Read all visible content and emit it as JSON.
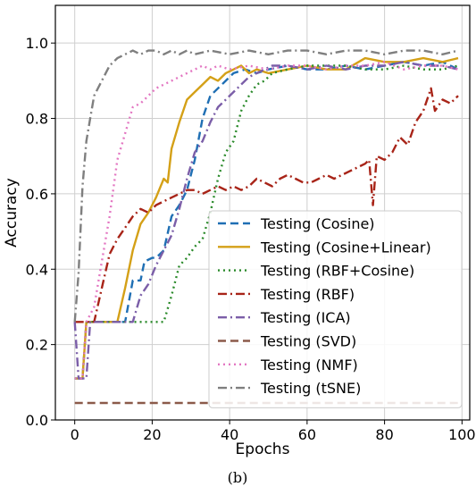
{
  "caption": "(b)",
  "chart_data": {
    "type": "line",
    "title": "",
    "xlabel": "Epochs",
    "ylabel": "Accuracy",
    "xlim": [
      -5,
      102
    ],
    "ylim": [
      0,
      1.1
    ],
    "xticks": [
      0,
      20,
      40,
      60,
      80,
      100
    ],
    "yticks": [
      0.0,
      0.2,
      0.4,
      0.6,
      0.8,
      1.0
    ],
    "grid": true,
    "legend_position": "lower-right",
    "series": [
      {
        "name": "Testing (Cosine)",
        "color": "#1f6fb4",
        "dash": "dashed",
        "points": [
          [
            0,
            0.11
          ],
          [
            2,
            0.11
          ],
          [
            3,
            0.26
          ],
          [
            13,
            0.26
          ],
          [
            15,
            0.37
          ],
          [
            17,
            0.37
          ],
          [
            18,
            0.42
          ],
          [
            20,
            0.43
          ],
          [
            21,
            0.43
          ],
          [
            23,
            0.45
          ],
          [
            25,
            0.54
          ],
          [
            27,
            0.57
          ],
          [
            29,
            0.61
          ],
          [
            31,
            0.69
          ],
          [
            33,
            0.8
          ],
          [
            35,
            0.86
          ],
          [
            37,
            0.88
          ],
          [
            39,
            0.9
          ],
          [
            41,
            0.92
          ],
          [
            44,
            0.93
          ],
          [
            47,
            0.92
          ],
          [
            50,
            0.93
          ],
          [
            55,
            0.94
          ],
          [
            60,
            0.93
          ],
          [
            65,
            0.93
          ],
          [
            70,
            0.94
          ],
          [
            75,
            0.93
          ],
          [
            80,
            0.94
          ],
          [
            85,
            0.95
          ],
          [
            90,
            0.94
          ],
          [
            95,
            0.95
          ],
          [
            99,
            0.93
          ]
        ]
      },
      {
        "name": "Testing (Cosine+Linear)",
        "color": "#d4a017",
        "dash": "solid",
        "points": [
          [
            0,
            0.11
          ],
          [
            2,
            0.11
          ],
          [
            3,
            0.26
          ],
          [
            11,
            0.26
          ],
          [
            13,
            0.35
          ],
          [
            15,
            0.45
          ],
          [
            17,
            0.52
          ],
          [
            19,
            0.55
          ],
          [
            21,
            0.59
          ],
          [
            23,
            0.64
          ],
          [
            24,
            0.63
          ],
          [
            25,
            0.72
          ],
          [
            27,
            0.79
          ],
          [
            29,
            0.85
          ],
          [
            31,
            0.87
          ],
          [
            33,
            0.89
          ],
          [
            35,
            0.91
          ],
          [
            37,
            0.9
          ],
          [
            39,
            0.92
          ],
          [
            41,
            0.93
          ],
          [
            43,
            0.94
          ],
          [
            45,
            0.92
          ],
          [
            47,
            0.93
          ],
          [
            50,
            0.92
          ],
          [
            55,
            0.93
          ],
          [
            60,
            0.94
          ],
          [
            65,
            0.93
          ],
          [
            70,
            0.93
          ],
          [
            75,
            0.96
          ],
          [
            80,
            0.95
          ],
          [
            85,
            0.95
          ],
          [
            90,
            0.96
          ],
          [
            95,
            0.95
          ],
          [
            99,
            0.96
          ]
        ]
      },
      {
        "name": "Testing (RBF+Cosine)",
        "color": "#2a8a2a",
        "dash": "dotted",
        "points": [
          [
            0,
            0.11
          ],
          [
            2,
            0.11
          ],
          [
            3,
            0.26
          ],
          [
            23,
            0.26
          ],
          [
            25,
            0.33
          ],
          [
            27,
            0.41
          ],
          [
            29,
            0.43
          ],
          [
            31,
            0.46
          ],
          [
            33,
            0.48
          ],
          [
            35,
            0.55
          ],
          [
            37,
            0.64
          ],
          [
            39,
            0.71
          ],
          [
            41,
            0.74
          ],
          [
            43,
            0.82
          ],
          [
            45,
            0.86
          ],
          [
            47,
            0.89
          ],
          [
            49,
            0.9
          ],
          [
            51,
            0.92
          ],
          [
            55,
            0.93
          ],
          [
            60,
            0.94
          ],
          [
            65,
            0.94
          ],
          [
            70,
            0.94
          ],
          [
            75,
            0.93
          ],
          [
            80,
            0.93
          ],
          [
            85,
            0.94
          ],
          [
            90,
            0.93
          ],
          [
            95,
            0.93
          ],
          [
            99,
            0.94
          ]
        ]
      },
      {
        "name": "Testing (RBF)",
        "color": "#a82418",
        "dash": "dashdot",
        "points": [
          [
            0,
            0.26
          ],
          [
            5,
            0.26
          ],
          [
            7,
            0.35
          ],
          [
            9,
            0.44
          ],
          [
            11,
            0.48
          ],
          [
            13,
            0.51
          ],
          [
            15,
            0.54
          ],
          [
            17,
            0.56
          ],
          [
            19,
            0.55
          ],
          [
            21,
            0.57
          ],
          [
            23,
            0.58
          ],
          [
            25,
            0.59
          ],
          [
            27,
            0.6
          ],
          [
            29,
            0.61
          ],
          [
            31,
            0.61
          ],
          [
            33,
            0.6
          ],
          [
            35,
            0.61
          ],
          [
            37,
            0.62
          ],
          [
            39,
            0.61
          ],
          [
            41,
            0.62
          ],
          [
            43,
            0.61
          ],
          [
            45,
            0.62
          ],
          [
            47,
            0.64
          ],
          [
            49,
            0.63
          ],
          [
            51,
            0.62
          ],
          [
            53,
            0.64
          ],
          [
            55,
            0.65
          ],
          [
            57,
            0.64
          ],
          [
            59,
            0.63
          ],
          [
            61,
            0.63
          ],
          [
            63,
            0.64
          ],
          [
            65,
            0.65
          ],
          [
            67,
            0.64
          ],
          [
            69,
            0.65
          ],
          [
            71,
            0.66
          ],
          [
            73,
            0.67
          ],
          [
            75,
            0.68
          ],
          [
            76,
            0.69
          ],
          [
            77,
            0.57
          ],
          [
            78,
            0.7
          ],
          [
            80,
            0.69
          ],
          [
            82,
            0.71
          ],
          [
            84,
            0.75
          ],
          [
            86,
            0.73
          ],
          [
            88,
            0.79
          ],
          [
            90,
            0.82
          ],
          [
            92,
            0.88
          ],
          [
            93,
            0.82
          ],
          [
            95,
            0.85
          ],
          [
            97,
            0.84
          ],
          [
            99,
            0.86
          ]
        ]
      },
      {
        "name": "Testing (ICA)",
        "color": "#7b5ea8",
        "dash": "dashdot",
        "points": [
          [
            0,
            0.26
          ],
          [
            1,
            0.11
          ],
          [
            3,
            0.11
          ],
          [
            4,
            0.26
          ],
          [
            15,
            0.26
          ],
          [
            17,
            0.33
          ],
          [
            19,
            0.36
          ],
          [
            21,
            0.41
          ],
          [
            23,
            0.45
          ],
          [
            25,
            0.49
          ],
          [
            27,
            0.56
          ],
          [
            29,
            0.64
          ],
          [
            31,
            0.71
          ],
          [
            33,
            0.74
          ],
          [
            35,
            0.79
          ],
          [
            37,
            0.83
          ],
          [
            39,
            0.85
          ],
          [
            41,
            0.87
          ],
          [
            43,
            0.89
          ],
          [
            45,
            0.91
          ],
          [
            47,
            0.92
          ],
          [
            49,
            0.93
          ],
          [
            51,
            0.94
          ],
          [
            55,
            0.94
          ],
          [
            60,
            0.93
          ],
          [
            65,
            0.94
          ],
          [
            70,
            0.93
          ],
          [
            75,
            0.94
          ],
          [
            80,
            0.94
          ],
          [
            85,
            0.95
          ],
          [
            90,
            0.94
          ],
          [
            95,
            0.94
          ],
          [
            99,
            0.93
          ]
        ]
      },
      {
        "name": "Testing (SVD)",
        "color": "#8b5a4a",
        "dash": "dashed",
        "points": [
          [
            0,
            0.045
          ],
          [
            99,
            0.045
          ]
        ]
      },
      {
        "name": "Testing (NMF)",
        "color": "#e377c2",
        "dash": "dotted",
        "points": [
          [
            0,
            0.11
          ],
          [
            2,
            0.11
          ],
          [
            3,
            0.26
          ],
          [
            5,
            0.3
          ],
          [
            7,
            0.42
          ],
          [
            9,
            0.54
          ],
          [
            11,
            0.69
          ],
          [
            13,
            0.76
          ],
          [
            15,
            0.83
          ],
          [
            17,
            0.84
          ],
          [
            19,
            0.86
          ],
          [
            21,
            0.88
          ],
          [
            23,
            0.89
          ],
          [
            25,
            0.9
          ],
          [
            27,
            0.91
          ],
          [
            29,
            0.92
          ],
          [
            31,
            0.93
          ],
          [
            33,
            0.94
          ],
          [
            35,
            0.93
          ],
          [
            37,
            0.94
          ],
          [
            40,
            0.93
          ],
          [
            45,
            0.94
          ],
          [
            50,
            0.93
          ],
          [
            55,
            0.94
          ],
          [
            60,
            0.94
          ],
          [
            65,
            0.93
          ],
          [
            70,
            0.94
          ],
          [
            75,
            0.94
          ],
          [
            80,
            0.95
          ],
          [
            85,
            0.93
          ],
          [
            90,
            0.94
          ],
          [
            95,
            0.94
          ],
          [
            99,
            0.93
          ]
        ]
      },
      {
        "name": "Testing (tSNE)",
        "color": "#7f7f7f",
        "dash": "dashdot",
        "points": [
          [
            0,
            0.26
          ],
          [
            1,
            0.39
          ],
          [
            2,
            0.62
          ],
          [
            3,
            0.74
          ],
          [
            4,
            0.8
          ],
          [
            5,
            0.86
          ],
          [
            7,
            0.9
          ],
          [
            9,
            0.94
          ],
          [
            11,
            0.96
          ],
          [
            13,
            0.97
          ],
          [
            15,
            0.98
          ],
          [
            17,
            0.97
          ],
          [
            19,
            0.98
          ],
          [
            21,
            0.98
          ],
          [
            23,
            0.97
          ],
          [
            25,
            0.98
          ],
          [
            27,
            0.97
          ],
          [
            29,
            0.98
          ],
          [
            31,
            0.97
          ],
          [
            35,
            0.98
          ],
          [
            40,
            0.97
          ],
          [
            45,
            0.98
          ],
          [
            50,
            0.97
          ],
          [
            55,
            0.98
          ],
          [
            60,
            0.98
          ],
          [
            65,
            0.97
          ],
          [
            70,
            0.98
          ],
          [
            75,
            0.98
          ],
          [
            80,
            0.97
          ],
          [
            85,
            0.98
          ],
          [
            90,
            0.98
          ],
          [
            95,
            0.97
          ],
          [
            99,
            0.98
          ]
        ]
      }
    ]
  }
}
